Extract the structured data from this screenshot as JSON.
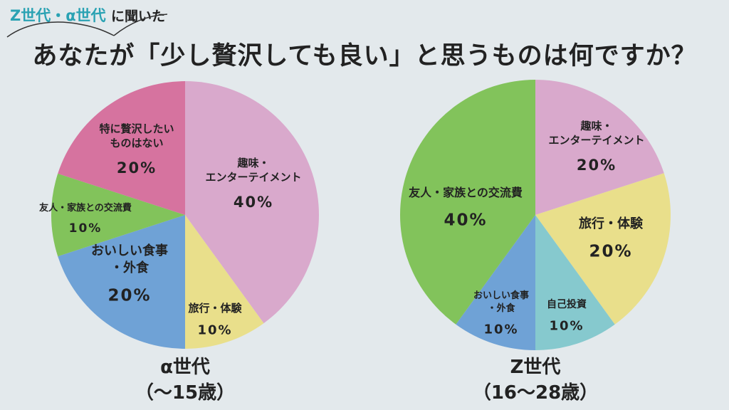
{
  "header": {
    "tag_accent": "Z世代・α世代",
    "tag_suffix": "に聞いた",
    "title": "あなたが「少し贅沢しても良い」と思うものは何ですか？"
  },
  "colors": {
    "hobby": "#d9a9cc",
    "travel": "#e9df8b",
    "selfinvest": "#86c9ce",
    "food": "#6fa2d6",
    "friends": "#82c35b",
    "none": "#d6739f",
    "tag_accent": "#2aa2b3",
    "background": "#e3e9ec"
  },
  "chart_data": [
    {
      "type": "pie",
      "name": "α世代",
      "subtitle": "（〜15歳）",
      "slices": [
        {
          "key": "hobby",
          "label": [
            "趣味・",
            "エンターテイメント"
          ],
          "value": 40,
          "display": "40%"
        },
        {
          "key": "travel",
          "label": [
            "旅行・体験"
          ],
          "value": 10,
          "display": "10%"
        },
        {
          "key": "food",
          "label": [
            "おいしい食事",
            "・外食"
          ],
          "value": 20,
          "display": "20%"
        },
        {
          "key": "friends",
          "label": [
            "友人・家族との交流費"
          ],
          "value": 10,
          "display": "10%"
        },
        {
          "key": "none",
          "label": [
            "特に贅沢したい",
            "ものはない"
          ],
          "value": 20,
          "display": "20%"
        }
      ]
    },
    {
      "type": "pie",
      "name": "Z世代",
      "subtitle": "（16〜28歳）",
      "slices": [
        {
          "key": "hobby",
          "label": [
            "趣味・",
            "エンターテイメント"
          ],
          "value": 20,
          "display": "20%"
        },
        {
          "key": "travel",
          "label": [
            "旅行・体験"
          ],
          "value": 20,
          "display": "20%"
        },
        {
          "key": "selfinvest",
          "label": [
            "自己投資"
          ],
          "value": 10,
          "display": "10%"
        },
        {
          "key": "food",
          "label": [
            "おいしい食事",
            "・外食"
          ],
          "value": 10,
          "display": "10%"
        },
        {
          "key": "friends",
          "label": [
            "友人・家族との交流費"
          ],
          "value": 40,
          "display": "40%"
        }
      ]
    }
  ]
}
